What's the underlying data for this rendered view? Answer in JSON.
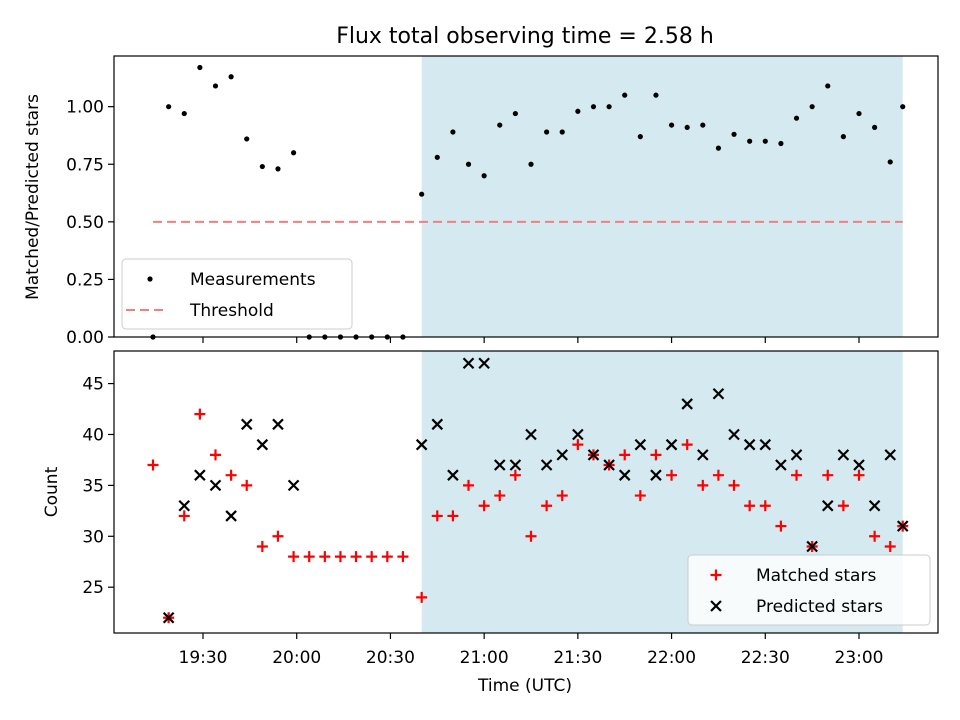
{
  "chart_data": [
    {
      "type": "scatter",
      "title": "Flux total observing time = 2.58 h",
      "ylabel": "Matched/Predicted stars",
      "xlabel": "",
      "ylim": [
        0,
        1.22
      ],
      "yticks": [
        "0.00",
        "0.25",
        "0.50",
        "0.75",
        "1.00"
      ],
      "shaded_region": {
        "start": "20:40",
        "end": "23:14",
        "color": "#d4eaf0"
      },
      "legend_position": "lower-left",
      "series": [
        {
          "name": "Measurements",
          "marker": "dot",
          "color": "#000000",
          "points": [
            [
              "19:14",
              0.0
            ],
            [
              "19:19",
              1.0
            ],
            [
              "19:24",
              0.97
            ],
            [
              "19:29",
              1.17
            ],
            [
              "19:34",
              1.09
            ],
            [
              "19:39",
              1.13
            ],
            [
              "19:44",
              0.86
            ],
            [
              "19:49",
              0.74
            ],
            [
              "19:54",
              0.73
            ],
            [
              "19:59",
              0.8
            ],
            [
              "20:04",
              0.0
            ],
            [
              "20:09",
              0.0
            ],
            [
              "20:14",
              0.0
            ],
            [
              "20:19",
              0.0
            ],
            [
              "20:24",
              0.0
            ],
            [
              "20:29",
              0.0
            ],
            [
              "20:34",
              0.0
            ],
            [
              "20:40",
              0.62
            ],
            [
              "20:45",
              0.78
            ],
            [
              "20:50",
              0.89
            ],
            [
              "20:55",
              0.75
            ],
            [
              "21:00",
              0.7
            ],
            [
              "21:05",
              0.92
            ],
            [
              "21:10",
              0.97
            ],
            [
              "21:15",
              0.75
            ],
            [
              "21:20",
              0.89
            ],
            [
              "21:25",
              0.89
            ],
            [
              "21:30",
              0.98
            ],
            [
              "21:35",
              1.0
            ],
            [
              "21:40",
              1.0
            ],
            [
              "21:45",
              1.05
            ],
            [
              "21:50",
              0.87
            ],
            [
              "21:55",
              1.05
            ],
            [
              "22:00",
              0.92
            ],
            [
              "22:05",
              0.91
            ],
            [
              "22:10",
              0.92
            ],
            [
              "22:15",
              0.82
            ],
            [
              "22:20",
              0.88
            ],
            [
              "22:25",
              0.85
            ],
            [
              "22:30",
              0.85
            ],
            [
              "22:35",
              0.84
            ],
            [
              "22:40",
              0.95
            ],
            [
              "22:45",
              1.0
            ],
            [
              "22:50",
              1.09
            ],
            [
              "22:55",
              0.87
            ],
            [
              "23:00",
              0.97
            ],
            [
              "23:05",
              0.91
            ],
            [
              "23:10",
              0.76
            ],
            [
              "23:14",
              1.0
            ]
          ]
        },
        {
          "name": "Threshold",
          "type": "line",
          "style": "dashed",
          "color": "#f08080",
          "points": [
            [
              "19:14",
              0.5
            ],
            [
              "23:14",
              0.5
            ]
          ]
        }
      ]
    },
    {
      "type": "scatter",
      "title": "",
      "ylabel": "Count",
      "xlabel": "Time (UTC)",
      "ylim": [
        20.5,
        48.2
      ],
      "yticks": [
        "25",
        "30",
        "35",
        "40",
        "45"
      ],
      "xticks": [
        "19:30",
        "20:00",
        "20:30",
        "21:00",
        "21:30",
        "22:00",
        "22:30",
        "23:00"
      ],
      "shaded_region": {
        "start": "20:40",
        "end": "23:14",
        "color": "#d4eaf0"
      },
      "legend_position": "lower-right",
      "series": [
        {
          "name": "Matched stars",
          "marker": "plus",
          "color": "#ff0000",
          "points": [
            [
              "19:14",
              37
            ],
            [
              "19:19",
              22
            ],
            [
              "19:24",
              32
            ],
            [
              "19:29",
              42
            ],
            [
              "19:34",
              38
            ],
            [
              "19:39",
              36
            ],
            [
              "19:44",
              35
            ],
            [
              "19:49",
              29
            ],
            [
              "19:54",
              30
            ],
            [
              "19:59",
              28
            ],
            [
              "20:04",
              28
            ],
            [
              "20:09",
              28
            ],
            [
              "20:14",
              28
            ],
            [
              "20:19",
              28
            ],
            [
              "20:24",
              28
            ],
            [
              "20:29",
              28
            ],
            [
              "20:34",
              28
            ],
            [
              "20:40",
              24
            ],
            [
              "20:45",
              32
            ],
            [
              "20:50",
              32
            ],
            [
              "20:55",
              35
            ],
            [
              "21:00",
              33
            ],
            [
              "21:05",
              34
            ],
            [
              "21:10",
              36
            ],
            [
              "21:15",
              30
            ],
            [
              "21:20",
              33
            ],
            [
              "21:25",
              34
            ],
            [
              "21:30",
              39
            ],
            [
              "21:35",
              38
            ],
            [
              "21:40",
              37
            ],
            [
              "21:45",
              38
            ],
            [
              "21:50",
              34
            ],
            [
              "21:55",
              38
            ],
            [
              "22:00",
              36
            ],
            [
              "22:05",
              39
            ],
            [
              "22:10",
              35
            ],
            [
              "22:15",
              36
            ],
            [
              "22:20",
              35
            ],
            [
              "22:25",
              33
            ],
            [
              "22:30",
              33
            ],
            [
              "22:35",
              31
            ],
            [
              "22:40",
              36
            ],
            [
              "22:45",
              29
            ],
            [
              "22:50",
              36
            ],
            [
              "22:55",
              33
            ],
            [
              "23:00",
              36
            ],
            [
              "23:05",
              30
            ],
            [
              "23:10",
              29
            ],
            [
              "23:14",
              31
            ]
          ]
        },
        {
          "name": "Predicted stars",
          "marker": "x",
          "color": "#000000",
          "points": [
            [
              "19:19",
              22
            ],
            [
              "19:24",
              33
            ],
            [
              "19:29",
              36
            ],
            [
              "19:34",
              35
            ],
            [
              "19:39",
              32
            ],
            [
              "19:44",
              41
            ],
            [
              "19:49",
              39
            ],
            [
              "19:54",
              41
            ],
            [
              "19:59",
              35
            ],
            [
              "20:40",
              39
            ],
            [
              "20:45",
              41
            ],
            [
              "20:50",
              36
            ],
            [
              "20:55",
              47
            ],
            [
              "21:00",
              47
            ],
            [
              "21:05",
              37
            ],
            [
              "21:10",
              37
            ],
            [
              "21:15",
              40
            ],
            [
              "21:20",
              37
            ],
            [
              "21:25",
              38
            ],
            [
              "21:30",
              40
            ],
            [
              "21:35",
              38
            ],
            [
              "21:40",
              37
            ],
            [
              "21:45",
              36
            ],
            [
              "21:50",
              39
            ],
            [
              "21:55",
              36
            ],
            [
              "22:00",
              39
            ],
            [
              "22:05",
              43
            ],
            [
              "22:10",
              38
            ],
            [
              "22:15",
              44
            ],
            [
              "22:20",
              40
            ],
            [
              "22:25",
              39
            ],
            [
              "22:30",
              39
            ],
            [
              "22:35",
              37
            ],
            [
              "22:40",
              38
            ],
            [
              "22:45",
              29
            ],
            [
              "22:50",
              33
            ],
            [
              "22:55",
              38
            ],
            [
              "23:00",
              37
            ],
            [
              "23:05",
              33
            ],
            [
              "23:10",
              38
            ],
            [
              "23:14",
              31
            ]
          ]
        }
      ]
    }
  ]
}
